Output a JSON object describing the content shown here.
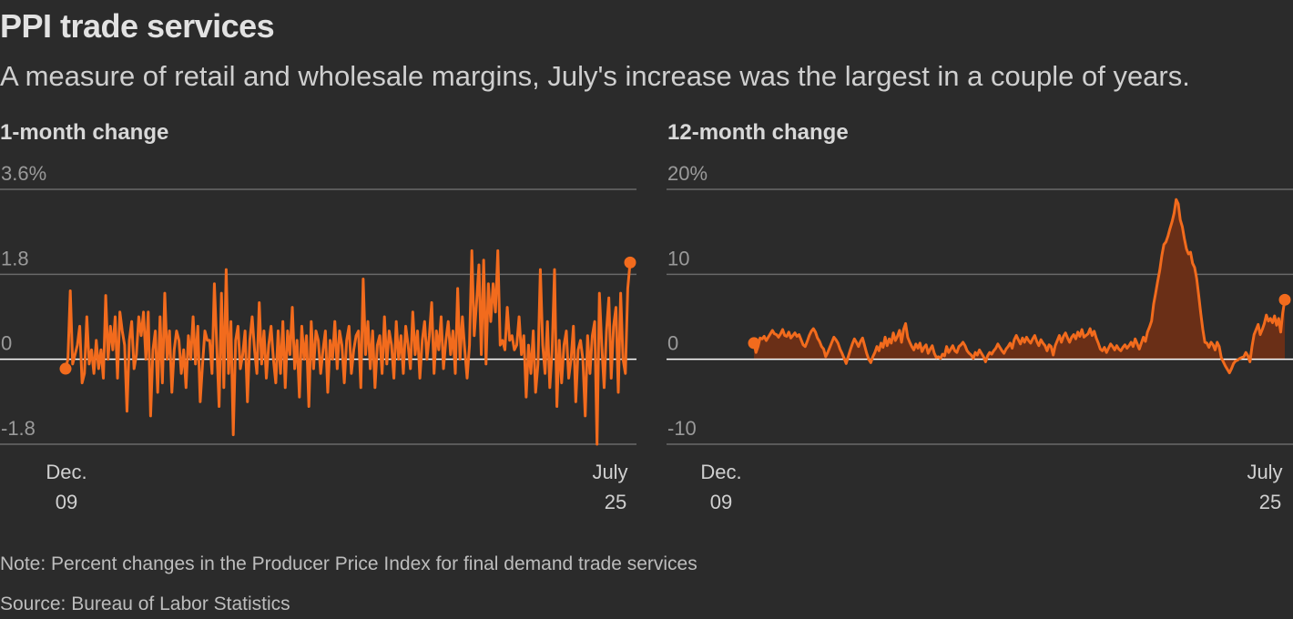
{
  "title": "PPI trade services",
  "subtitle": "A measure of retail and wholesale margins, July's increase was the largest in a couple of years.",
  "note": "Note: Percent changes in the Producer Price Index for final demand trade services",
  "source": "Source: Bureau of Labor Statistics",
  "colors": {
    "background": "#2b2b2b",
    "line": "#f26b1d",
    "area": "#6a2f17",
    "grid": "#6a6a6a",
    "zero": "#ffffff"
  },
  "chart_data": [
    {
      "type": "line",
      "title": "1-month change",
      "xlabel": "",
      "ylabel": "",
      "ylim": [
        -1.8,
        3.6
      ],
      "y_ticks": [
        {
          "value": 3.6,
          "label": "3.6%"
        },
        {
          "value": 1.8,
          "label": "1.8"
        },
        {
          "value": 0,
          "label": "0"
        },
        {
          "value": -1.8,
          "label": "-1.8"
        }
      ],
      "x_ticks": [
        {
          "month": "Dec.",
          "year": "09"
        },
        {
          "month": "July",
          "year": "25"
        }
      ],
      "x_start": "Dec. 2009",
      "x_end": "July 2025",
      "highlight_last": 2.05,
      "values": [
        -0.2,
        0.0,
        1.45,
        -0.1,
        0.1,
        0.3,
        0.7,
        -0.5,
        -0.3,
        0.9,
        -0.1,
        0.2,
        -0.3,
        0.4,
        -0.2,
        0.2,
        -0.4,
        1.35,
        0.0,
        0.7,
        0.2,
        0.9,
        -0.4,
        1.0,
        0.6,
        0.3,
        -1.1,
        0.4,
        0.8,
        -0.2,
        0.1,
        0.9,
        0.5,
        1.0,
        0.0,
        1.0,
        -1.2,
        0.2,
        0.6,
        -0.7,
        0.9,
        -0.5,
        1.4,
        0.0,
        0.6,
        -0.7,
        0.2,
        0.6,
        0.4,
        -0.3,
        0.2,
        -0.6,
        0.5,
        0.0,
        0.9,
        -0.1,
        0.7,
        -0.9,
        -0.1,
        0.6,
        0.4,
        0.4,
        -0.3,
        1.6,
        0.3,
        -1.0,
        1.4,
        -0.6,
        1.9,
        -0.3,
        0.8,
        -1.6,
        0.4,
        0.7,
        -0.2,
        0.1,
        0.6,
        -0.9,
        0.4,
        0.9,
        0.2,
        -0.3,
        1.2,
        -0.1,
        0.6,
        -0.4,
        0.3,
        0.7,
        0.0,
        -0.5,
        0.6,
        -0.3,
        0.8,
        -0.6,
        0.6,
        0.1,
        1.1,
        -0.2,
        0.4,
        -0.8,
        0.7,
        0.0,
        0.5,
        -1.0,
        0.8,
        -0.2,
        0.6,
        0.4,
        -0.3,
        0.2,
        0.6,
        -0.7,
        0.4,
        0.0,
        0.8,
        -0.2,
        0.6,
        0.3,
        -0.5,
        0.4,
        0.7,
        -0.3,
        0.2,
        0.5,
        0.6,
        -0.6,
        1.7,
        0.1,
        0.8,
        -0.2,
        0.6,
        -0.6,
        0.3,
        0.5,
        -0.3,
        0.9,
        -0.1,
        0.6,
        0.3,
        -0.4,
        0.8,
        0.0,
        0.5,
        -0.3,
        0.7,
        0.3,
        -0.2,
        1.0,
        0.1,
        0.6,
        -0.4,
        0.4,
        0.8,
        0.0,
        0.5,
        1.2,
        -0.3,
        0.6,
        0.2,
        0.9,
        -0.2,
        0.4,
        0.8,
        0.1,
        0.6,
        -0.3,
        1.5,
        0.0,
        0.9,
        0.2,
        -0.4,
        0.3,
        2.3,
        0.5,
        1.2,
        2.0,
        0.1,
        2.1,
        -0.1,
        1.6,
        0.8,
        1.6,
        1.0,
        2.3,
        0.3,
        0.4,
        0.2,
        1.1,
        0.4,
        0.5,
        0.2,
        0.3,
        0.9,
        0.1,
        0.5,
        -0.8,
        0.3,
        -0.3,
        0.6,
        -0.7,
        -0.1,
        1.9,
        0.3,
        -0.3,
        0.8,
        -0.6,
        0.2,
        1.9,
        -1.0,
        0.4,
        -0.5,
        0.3,
        0.6,
        -0.4,
        0.0,
        0.7,
        -0.9,
        0.2,
        0.4,
        0.0,
        -1.2,
        0.5,
        -0.3,
        0.5,
        0.8,
        -1.8,
        1.4,
        0.3,
        -0.6,
        0.6,
        1.3,
        -0.4,
        0.7,
        1.1,
        -0.7,
        1.4,
        0.0,
        -0.3,
        1.5,
        2.05
      ]
    },
    {
      "type": "area",
      "title": "12-month change",
      "xlabel": "",
      "ylabel": "",
      "ylim": [
        -10,
        20
      ],
      "y_ticks": [
        {
          "value": 20,
          "label": "20%"
        },
        {
          "value": 10,
          "label": "10"
        },
        {
          "value": 0,
          "label": "0"
        },
        {
          "value": -10,
          "label": "-10"
        }
      ],
      "x_ticks": [
        {
          "month": "Dec.",
          "year": "09"
        },
        {
          "month": "July",
          "year": "25"
        }
      ],
      "x_start": "Dec. 2009",
      "x_end": "July 2025",
      "highlight_first": 1.9,
      "highlight_last": 7.0,
      "values": [
        1.9,
        0.8,
        1.5,
        2.5,
        2.4,
        2.7,
        2.2,
        2.6,
        3.0,
        3.4,
        3.0,
        2.9,
        2.6,
        3.0,
        3.5,
        2.8,
        2.7,
        3.2,
        2.5,
        2.8,
        3.1,
        2.7,
        2.9,
        2.3,
        1.7,
        1.5,
        2.1,
        2.8,
        3.3,
        3.6,
        3.2,
        2.5,
        2.1,
        1.5,
        1.2,
        0.3,
        0.8,
        1.4,
        2.0,
        2.6,
        2.3,
        1.9,
        1.2,
        0.7,
        0.1,
        -0.5,
        0.3,
        1.1,
        1.8,
        2.4,
        2.0,
        1.5,
        2.1,
        2.5,
        1.6,
        0.7,
        0.0,
        -0.4,
        0.3,
        0.8,
        1.5,
        1.0,
        1.9,
        1.4,
        2.6,
        1.6,
        2.4,
        1.9,
        3.1,
        2.2,
        2.7,
        3.4,
        2.0,
        3.5,
        4.2,
        2.6,
        2.0,
        1.5,
        1.1,
        1.8,
        1.3,
        1.9,
        0.9,
        1.4,
        1.7,
        0.7,
        1.2,
        1.6,
        0.7,
        0.2,
        0.3,
        0.1,
        0.6,
        0.4,
        1.5,
        0.8,
        1.2,
        1.6,
        1.0,
        0.8,
        1.5,
        1.7,
        2.0,
        1.6,
        1.0,
        0.7,
        0.5,
        0.1,
        0.8,
        0.5,
        1.1,
        0.7,
        0.3,
        -0.3,
        0.4,
        0.8,
        0.6,
        1.0,
        1.3,
        1.8,
        1.4,
        1.0,
        0.7,
        1.2,
        1.5,
        1.9,
        1.3,
        2.3,
        2.8,
        2.3,
        1.8,
        2.5,
        2.0,
        2.6,
        2.2,
        1.9,
        2.4,
        2.8,
        2.1,
        1.6,
        2.3,
        1.9,
        1.6,
        1.0,
        1.7,
        1.5,
        0.5,
        1.6,
        2.2,
        2.8,
        2.0,
        2.7,
        3.1,
        2.5,
        2.0,
        2.6,
        2.9,
        2.4,
        3.2,
        2.7,
        3.5,
        2.6,
        2.8,
        3.0,
        3.6,
        2.8,
        3.3,
        2.5,
        1.9,
        1.2,
        1.0,
        1.4,
        0.8,
        1.3,
        1.8,
        1.5,
        1.1,
        1.6,
        1.2,
        1.0,
        1.4,
        1.7,
        1.3,
        1.6,
        2.0,
        1.5,
        2.4,
        1.8,
        1.2,
        1.9,
        2.6,
        2.1,
        3.2,
        3.8,
        4.5,
        6.5,
        7.8,
        9.2,
        10.5,
        12.2,
        13.5,
        13.8,
        14.5,
        15.4,
        16.2,
        17.2,
        18.8,
        18.3,
        16.4,
        15.6,
        14.2,
        13.0,
        12.4,
        12.6,
        11.3,
        10.8,
        9.5,
        7.5,
        5.4,
        3.5,
        2.0,
        1.9,
        1.4,
        2.0,
        1.7,
        1.1,
        2.0,
        1.5,
        0.2,
        -0.3,
        -0.8,
        -1.2,
        -1.6,
        -1.1,
        -0.5,
        -0.2,
        -0.1,
        0.1,
        0.2,
        0.3,
        0.8,
        0.4,
        -0.3,
        1.5,
        2.9,
        3.5,
        4.1,
        2.9,
        3.5,
        4.2,
        5.2,
        4.5,
        4.8,
        4.3,
        5.1,
        4.0,
        4.8,
        3.2,
        5.5,
        7.0
      ]
    }
  ]
}
